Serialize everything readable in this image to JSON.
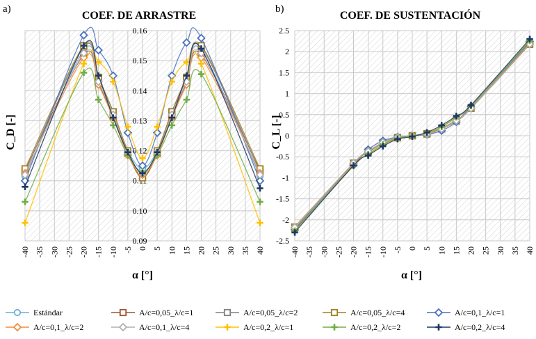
{
  "chart_data": [
    {
      "panel": "a)",
      "type": "line",
      "title": "COEF. DE ARRASTRE",
      "ylabel": "C_D [-]",
      "xlabel": "α [°]",
      "xlim": [
        -40,
        40
      ],
      "ylim": [
        0.09,
        0.16
      ],
      "xticks": [
        -40,
        -35,
        -30,
        -25,
        -20,
        -15,
        -10,
        -5,
        0,
        5,
        10,
        15,
        20,
        25,
        30,
        35,
        40
      ],
      "yticks": [
        0.09,
        0.1,
        0.11,
        0.12,
        0.13,
        0.14,
        0.15,
        0.16
      ],
      "ytick_labels": [
        "0.09",
        "0.10",
        "0.11",
        "0.12",
        "0.13",
        "0.14",
        "0.15",
        "0.16"
      ],
      "x": [
        -40,
        -20,
        -15,
        -10,
        -5,
        0,
        5,
        10,
        15,
        20,
        40
      ],
      "series": [
        {
          "name": "Estándar",
          "values": [
            0.1115,
            0.1535,
            0.144,
            0.132,
            0.12,
            0.114,
            0.12,
            0.132,
            0.144,
            0.1535,
            0.1115
          ]
        },
        {
          "name": "A/c=0,05_λ/c=1",
          "values": [
            0.1135,
            0.152,
            0.1425,
            0.1315,
            0.119,
            0.111,
            0.119,
            0.1315,
            0.1425,
            0.152,
            0.1135
          ]
        },
        {
          "name": "A/c=0,05_λ/c=2",
          "values": [
            0.113,
            0.1545,
            0.144,
            0.133,
            0.1195,
            0.111,
            0.1195,
            0.133,
            0.144,
            0.1545,
            0.113
          ]
        },
        {
          "name": "A/c=0,05_λ/c=4",
          "values": [
            0.114,
            0.155,
            0.1445,
            0.133,
            0.12,
            0.111,
            0.12,
            0.133,
            0.1445,
            0.155,
            0.114
          ]
        },
        {
          "name": "A/c=0,1_λ/c=1",
          "values": [
            0.11,
            0.1585,
            0.1535,
            0.145,
            0.126,
            0.115,
            0.126,
            0.145,
            0.156,
            0.1575,
            0.11
          ]
        },
        {
          "name": "A/c=0,1_λ/c=2",
          "values": [
            0.1125,
            0.151,
            0.142,
            0.131,
            0.1185,
            0.112,
            0.1185,
            0.131,
            0.142,
            0.151,
            0.1125
          ]
        },
        {
          "name": "A/c=0,1_λ/c=4",
          "values": [
            0.112,
            0.1525,
            0.143,
            0.132,
            0.1195,
            0.1125,
            0.1195,
            0.132,
            0.143,
            0.1525,
            0.112
          ]
        },
        {
          "name": "A/c=0,2_λ/c=1",
          "values": [
            0.096,
            0.149,
            0.1495,
            0.143,
            0.128,
            0.1175,
            0.128,
            0.143,
            0.1495,
            0.149,
            0.096
          ]
        },
        {
          "name": "A/c=0,2_λ/c=2",
          "values": [
            0.103,
            0.146,
            0.137,
            0.1285,
            0.1185,
            0.113,
            0.1185,
            0.1285,
            0.137,
            0.1455,
            0.103
          ]
        },
        {
          "name": "A/c=0,2_λ/c=4",
          "values": [
            0.108,
            0.155,
            0.145,
            0.131,
            0.1195,
            0.1125,
            0.1195,
            0.131,
            0.145,
            0.154,
            0.1075
          ]
        }
      ]
    },
    {
      "panel": "b)",
      "type": "line",
      "title": "COEF. DE SUSTENTACIÓN",
      "ylabel": "C_L [-]",
      "xlabel": "α [°]",
      "xlim": [
        -40,
        40
      ],
      "ylim": [
        -2.5,
        2.5
      ],
      "xticks": [
        -40,
        -35,
        -30,
        -25,
        -20,
        -15,
        -10,
        -5,
        0,
        5,
        10,
        15,
        20,
        25,
        30,
        35,
        40
      ],
      "yticks": [
        -2.5,
        -2,
        -1.5,
        -1,
        -0.5,
        0,
        0.5,
        1,
        1.5,
        2,
        2.5
      ],
      "ytick_labels": [
        "-2.5",
        "-2",
        "-1.5",
        "-1",
        "-0.5",
        "0",
        "0.5",
        "1",
        "1.5",
        "2",
        "2.5"
      ],
      "x": [
        -40,
        -20,
        -15,
        -10,
        -5,
        0,
        5,
        10,
        15,
        20,
        40
      ],
      "series": [
        {
          "name": "Estándar",
          "values": [
            -2.22,
            -0.67,
            -0.4,
            -0.18,
            -0.05,
            0.0,
            0.05,
            0.18,
            0.38,
            0.67,
            2.22
          ]
        },
        {
          "name": "A/c=0,05_λ/c=1",
          "values": [
            -2.2,
            -0.66,
            -0.39,
            -0.17,
            -0.05,
            0.0,
            0.05,
            0.17,
            0.37,
            0.66,
            2.2
          ]
        },
        {
          "name": "A/c=0,05_λ/c=2",
          "values": [
            -2.18,
            -0.65,
            -0.38,
            -0.16,
            -0.04,
            0.0,
            0.04,
            0.16,
            0.36,
            0.65,
            2.18
          ]
        },
        {
          "name": "A/c=0,05_λ/c=4",
          "values": [
            -2.17,
            -0.65,
            -0.37,
            -0.16,
            -0.04,
            0.0,
            0.04,
            0.16,
            0.35,
            0.65,
            2.17
          ]
        },
        {
          "name": "A/c=0,1_λ/c=1",
          "values": [
            -2.24,
            -0.7,
            -0.33,
            -0.12,
            -0.03,
            0.0,
            0.03,
            0.12,
            0.33,
            0.7,
            2.24
          ]
        },
        {
          "name": "A/c=0,1_λ/c=2",
          "values": [
            -2.19,
            -0.66,
            -0.38,
            -0.17,
            -0.05,
            0.0,
            0.05,
            0.17,
            0.37,
            0.66,
            2.19
          ]
        },
        {
          "name": "A/c=0,1_λ/c=4",
          "values": [
            -2.18,
            -0.65,
            -0.37,
            -0.16,
            -0.04,
            0.0,
            0.04,
            0.16,
            0.36,
            0.65,
            2.18
          ]
        },
        {
          "name": "A/c=0,2_λ/c=1",
          "values": [
            -2.27,
            -0.72,
            -0.45,
            -0.22,
            -0.07,
            0.0,
            0.07,
            0.22,
            0.45,
            0.72,
            2.27
          ]
        },
        {
          "name": "A/c=0,2_λ/c=2",
          "values": [
            -2.26,
            -0.71,
            -0.44,
            -0.21,
            -0.06,
            0.0,
            0.06,
            0.21,
            0.44,
            0.71,
            2.26
          ]
        },
        {
          "name": "A/c=0,2_λ/c=4",
          "values": [
            -2.3,
            -0.71,
            -0.47,
            -0.25,
            -0.08,
            -0.02,
            0.08,
            0.25,
            0.47,
            0.73,
            2.3
          ]
        }
      ]
    }
  ],
  "legend": [
    {
      "label": "Estándar",
      "color": "#6aaed6",
      "marker": "circle"
    },
    {
      "label": "A/c=0,05_λ/c=1",
      "color": "#a0522d",
      "marker": "square"
    },
    {
      "label": "A/c=0,05_λ/c=2",
      "color": "#808080",
      "marker": "square"
    },
    {
      "label": "A/c=0,05_λ/c=4",
      "color": "#a08020",
      "marker": "square"
    },
    {
      "label": "A/c=0,1_λ/c=1",
      "color": "#4a70c0",
      "marker": "diamond"
    },
    {
      "label": "A/c=0,1_λ/c=2",
      "color": "#f08a3c",
      "marker": "diamond"
    },
    {
      "label": "A/c=0,1_λ/c=4",
      "color": "#b0b0b0",
      "marker": "diamond"
    },
    {
      "label": "A/c=0,2_λ/c=1",
      "color": "#ffc000",
      "marker": "plus"
    },
    {
      "label": "A/c=0,2_λ/c=2",
      "color": "#70ad47",
      "marker": "plus"
    },
    {
      "label": "A/c=0,2_λ/c=4",
      "color": "#1f3864",
      "marker": "plus"
    }
  ]
}
